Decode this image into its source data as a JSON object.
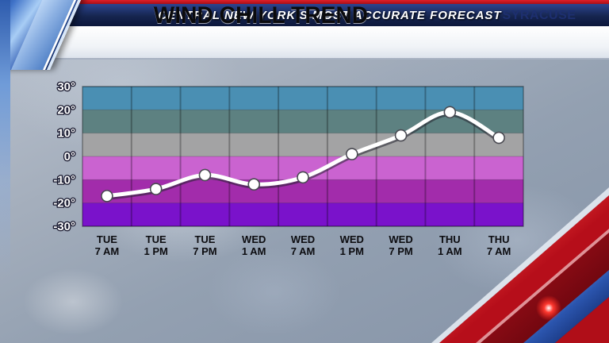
{
  "header": {
    "banner": "CENTRAL NEW YORK'S MOST ACCURATE FORECAST",
    "title": "WIND CHILL TREND",
    "location": "SYRACUSE"
  },
  "chart_data": {
    "type": "line",
    "title": "Wind Chill Trend",
    "categories": [
      {
        "day": "TUE",
        "time": "7 AM"
      },
      {
        "day": "TUE",
        "time": "1 PM"
      },
      {
        "day": "TUE",
        "time": "7 PM"
      },
      {
        "day": "WED",
        "time": "1 AM"
      },
      {
        "day": "WED",
        "time": "7 AM"
      },
      {
        "day": "WED",
        "time": "1 PM"
      },
      {
        "day": "WED",
        "time": "7 PM"
      },
      {
        "day": "THU",
        "time": "1 AM"
      },
      {
        "day": "THU",
        "time": "7 AM"
      }
    ],
    "values": [
      -17,
      -14,
      -8,
      -12,
      -9,
      1,
      9,
      19,
      8
    ],
    "unit": "°",
    "ylim": [
      -30,
      30
    ],
    "yticks": [
      30,
      20,
      10,
      0,
      -10,
      -20,
      -30
    ],
    "ytick_labels": [
      "30°",
      "20°",
      "10°",
      "0°",
      "-10°",
      "-20°",
      "-30°"
    ],
    "bands": [
      {
        "from": 20,
        "to": 30,
        "color": "#4a8fb3"
      },
      {
        "from": 10,
        "to": 20,
        "color": "#5d8181"
      },
      {
        "from": 0,
        "to": 10,
        "color": "#a3a3a4"
      },
      {
        "from": -10,
        "to": 0,
        "color": "#ca63d0"
      },
      {
        "from": -20,
        "to": -10,
        "color": "#a22cab"
      },
      {
        "from": -30,
        "to": -20,
        "color": "#7a12cb"
      }
    ],
    "line_color": "#ffffff",
    "marker_color": "#ffffff",
    "grid": true,
    "legend": false
  }
}
